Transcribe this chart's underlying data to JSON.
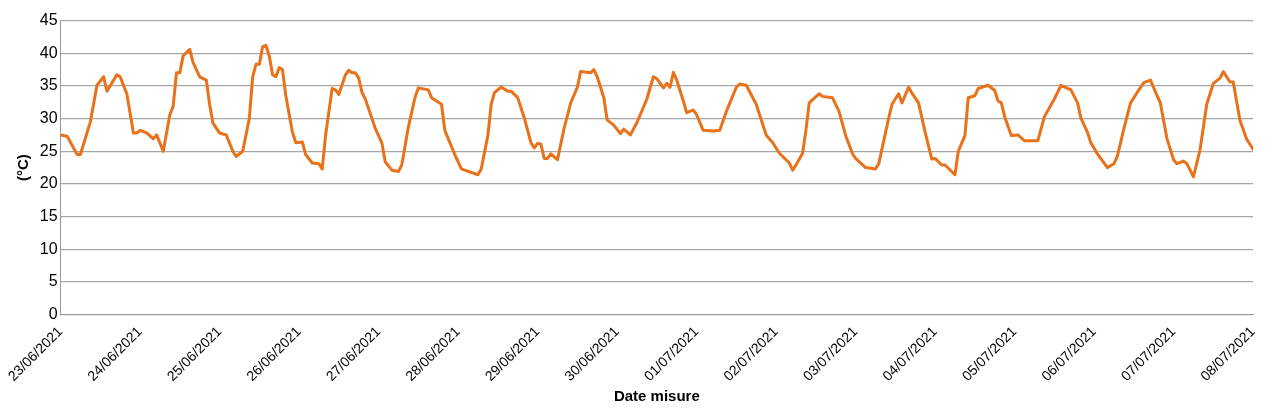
{
  "chart_data": {
    "type": "line",
    "xlabel": "Date misure",
    "ylabel": "(°C)",
    "xlim": [
      "2021-06-23",
      "2021-07-08"
    ],
    "ylim": [
      0,
      45
    ],
    "yticks": [
      0,
      5,
      10,
      15,
      20,
      25,
      30,
      35,
      40,
      45
    ],
    "xticks": [
      {
        "value": "2021-06-23",
        "label": "23/06/2021"
      },
      {
        "value": "2021-06-24",
        "label": "24/06/2021"
      },
      {
        "value": "2021-06-25",
        "label": "25/06/2021"
      },
      {
        "value": "2021-06-26",
        "label": "26/06/2021"
      },
      {
        "value": "2021-06-27",
        "label": "27/06/2021"
      },
      {
        "value": "2021-06-28",
        "label": "28/06/2021"
      },
      {
        "value": "2021-06-29",
        "label": "29/06/2021"
      },
      {
        "value": "2021-06-30",
        "label": "30/06/2021"
      },
      {
        "value": "2021-07-01",
        "label": "01/07/2021"
      },
      {
        "value": "2021-07-02",
        "label": "02/07/2021"
      },
      {
        "value": "2021-07-03",
        "label": "03/07/2021"
      },
      {
        "value": "2021-07-04",
        "label": "04/07/2021"
      },
      {
        "value": "2021-07-05",
        "label": "05/07/2021"
      },
      {
        "value": "2021-07-06",
        "label": "06/07/2021"
      },
      {
        "value": "2021-07-07",
        "label": "07/07/2021"
      },
      {
        "value": "2021-07-08",
        "label": "08/07/2021"
      }
    ],
    "grid": "y",
    "legend": false,
    "marker": "none",
    "line_style": "solid",
    "series": [
      {
        "color": "#e8711a",
        "x": [
          "2021-06-23T00:00",
          "2021-06-23T02:00",
          "2021-06-23T05:00",
          "2021-06-23T06:00",
          "2021-06-23T09:00",
          "2021-06-23T11:00",
          "2021-06-23T13:00",
          "2021-06-23T14:00",
          "2021-06-23T17:00",
          "2021-06-23T18:00",
          "2021-06-23T20:00",
          "2021-06-23T22:00",
          "2021-06-23T23:00",
          "2021-06-24T00:00",
          "2021-06-24T02:00",
          "2021-06-24T04:00",
          "2021-06-24T05:00",
          "2021-06-24T07:00",
          "2021-06-24T09:00",
          "2021-06-24T10:00",
          "2021-06-24T11:00",
          "2021-06-24T12:00",
          "2021-06-24T13:00",
          "2021-06-24T15:00",
          "2021-06-24T16:00",
          "2021-06-24T18:00",
          "2021-06-24T20:00",
          "2021-06-24T21:00",
          "2021-06-24T22:00",
          "2021-06-25T00:00",
          "2021-06-25T02:00",
          "2021-06-25T04:00",
          "2021-06-25T05:00",
          "2021-06-25T07:00",
          "2021-06-25T09:00",
          "2021-06-25T10:00",
          "2021-06-25T11:00",
          "2021-06-25T12:00",
          "2021-06-25T13:00",
          "2021-06-25T14:00",
          "2021-06-25T15:00",
          "2021-06-25T16:00",
          "2021-06-25T17:00",
          "2021-06-25T18:00",
          "2021-06-25T19:00",
          "2021-06-25T20:00",
          "2021-06-25T22:00",
          "2021-06-25T23:00",
          "2021-06-26T01:00",
          "2021-06-26T02:00",
          "2021-06-26T04:00",
          "2021-06-26T06:00",
          "2021-06-26T07:00",
          "2021-06-26T08:00",
          "2021-06-26T10:00",
          "2021-06-26T11:00",
          "2021-06-26T12:00",
          "2021-06-26T14:00",
          "2021-06-26T15:00",
          "2021-06-26T16:00",
          "2021-06-26T17:00",
          "2021-06-26T18:00",
          "2021-06-26T19:00",
          "2021-06-26T20:00",
          "2021-06-26T23:00",
          "2021-06-27T01:00",
          "2021-06-27T02:00",
          "2021-06-27T04:00",
          "2021-06-27T06:00",
          "2021-06-27T07:00",
          "2021-06-27T09:00",
          "2021-06-27T11:00",
          "2021-06-27T12:00",
          "2021-06-27T15:00",
          "2021-06-27T16:00",
          "2021-06-27T19:00",
          "2021-06-27T20:00",
          "2021-06-27T23:00",
          "2021-06-28T01:00",
          "2021-06-28T02:00",
          "2021-06-28T06:00",
          "2021-06-28T07:00",
          "2021-06-28T09:00",
          "2021-06-28T10:00",
          "2021-06-28T11:00",
          "2021-06-28T13:00",
          "2021-06-28T15:00",
          "2021-06-28T16:00",
          "2021-06-28T18:00",
          "2021-06-28T20:00",
          "2021-06-28T22:00",
          "2021-06-28T23:00",
          "2021-06-29T00:00",
          "2021-06-29T01:00",
          "2021-06-29T02:00",
          "2021-06-29T03:00",
          "2021-06-29T04:00",
          "2021-06-29T06:00",
          "2021-06-29T08:00",
          "2021-06-29T10:00",
          "2021-06-29T12:00",
          "2021-06-29T13:00",
          "2021-06-29T16:00",
          "2021-06-29T17:00",
          "2021-06-29T18:00",
          "2021-06-29T20:00",
          "2021-06-29T21:00",
          "2021-06-29T23:00",
          "2021-06-30T01:00",
          "2021-06-30T02:00",
          "2021-06-30T04:00",
          "2021-06-30T06:00",
          "2021-06-30T09:00",
          "2021-06-30T10:00",
          "2021-06-30T11:00",
          "2021-06-30T12:00",
          "2021-06-30T14:00",
          "2021-06-30T15:00",
          "2021-06-30T16:00",
          "2021-06-30T17:00",
          "2021-06-30T18:00",
          "2021-06-30T20:00",
          "2021-06-30T21:00",
          "2021-06-30T23:00",
          "2021-07-01T00:00",
          "2021-07-01T02:00",
          "2021-07-01T05:00",
          "2021-07-01T07:00",
          "2021-07-01T09:00",
          "2021-07-01T12:00",
          "2021-07-01T13:00",
          "2021-07-01T15:00",
          "2021-07-01T18:00",
          "2021-07-01T21:00",
          "2021-07-01T23:00",
          "2021-07-02T01:00",
          "2021-07-02T04:00",
          "2021-07-02T05:00",
          "2021-07-02T06:00",
          "2021-07-02T08:00",
          "2021-07-02T09:00",
          "2021-07-02T10:00",
          "2021-07-02T13:00",
          "2021-07-02T14:00",
          "2021-07-02T17:00",
          "2021-07-02T19:00",
          "2021-07-02T21:00",
          "2021-07-02T23:00",
          "2021-07-03T00:00",
          "2021-07-03T03:00",
          "2021-07-03T06:00",
          "2021-07-03T07:00",
          "2021-07-03T10:00",
          "2021-07-03T11:00",
          "2021-07-03T13:00",
          "2021-07-03T14:00",
          "2021-07-03T16:00",
          "2021-07-03T17:00",
          "2021-07-03T19:00",
          "2021-07-03T21:00",
          "2021-07-03T23:00",
          "2021-07-04T00:00",
          "2021-07-04T02:00",
          "2021-07-04T03:00",
          "2021-07-04T06:00",
          "2021-07-04T07:00",
          "2021-07-04T09:00",
          "2021-07-04T10:00",
          "2021-07-04T12:00",
          "2021-07-04T13:00",
          "2021-07-04T16:00",
          "2021-07-04T18:00",
          "2021-07-04T19:00",
          "2021-07-04T20:00",
          "2021-07-04T21:00",
          "2021-07-04T23:00",
          "2021-07-05T01:00",
          "2021-07-05T03:00",
          "2021-07-05T07:00",
          "2021-07-05T09:00",
          "2021-07-05T12:00",
          "2021-07-05T14:00",
          "2021-07-05T17:00",
          "2021-07-05T19:00",
          "2021-07-05T20:00",
          "2021-07-05T22:00",
          "2021-07-05T23:00",
          "2021-07-06T01:00",
          "2021-07-06T04:00",
          "2021-07-06T06:00",
          "2021-07-06T07:00",
          "2021-07-06T09:00",
          "2021-07-06T11:00",
          "2021-07-06T13:00",
          "2021-07-06T15:00",
          "2021-07-06T17:00",
          "2021-07-06T19:00",
          "2021-07-06T20:00",
          "2021-07-06T22:00",
          "2021-07-07T00:00",
          "2021-07-07T01:00",
          "2021-07-07T03:00",
          "2021-07-07T04:00",
          "2021-07-07T06:00",
          "2021-07-07T08:00",
          "2021-07-07T10:00",
          "2021-07-07T12:00",
          "2021-07-07T14:00",
          "2021-07-07T15:00",
          "2021-07-07T17:00",
          "2021-07-07T18:00",
          "2021-07-07T20:00",
          "2021-07-07T22:00",
          "2021-07-08T00:00"
        ],
        "values": [
          27.5,
          27.3,
          24.5,
          24.5,
          29.5,
          35.1,
          36.4,
          34.2,
          36.7,
          36.4,
          33.8,
          27.8,
          27.8,
          28.2,
          27.8,
          26.9,
          27.5,
          25.0,
          30.6,
          31.9,
          37.0,
          37.0,
          39.6,
          40.6,
          38.6,
          36.4,
          35.9,
          32.2,
          29.3,
          27.8,
          27.5,
          25.0,
          24.2,
          25.0,
          30.1,
          36.4,
          38.3,
          38.3,
          41.0,
          41.2,
          39.6,
          36.7,
          36.4,
          37.8,
          37.5,
          33.5,
          27.9,
          26.3,
          26.4,
          24.5,
          23.2,
          23.1,
          22.3,
          27.4,
          34.6,
          34.4,
          33.7,
          36.7,
          37.4,
          37.0,
          37.0,
          36.2,
          34.0,
          33.0,
          28.5,
          26.3,
          23.4,
          22.1,
          21.9,
          22.9,
          28.7,
          33.2,
          34.7,
          34.4,
          33.2,
          32.2,
          28.2,
          24.5,
          22.3,
          22.1,
          21.4,
          22.3,
          27.4,
          32.2,
          34.0,
          34.8,
          34.2,
          34.2,
          33.2,
          30.1,
          26.3,
          25.5,
          26.2,
          26.1,
          23.9,
          23.9,
          24.6,
          23.7,
          28.5,
          32.4,
          34.8,
          37.2,
          37.0,
          37.5,
          36.4,
          33.2,
          29.8,
          29.0,
          27.7,
          28.4,
          27.5,
          29.4,
          33.0,
          34.8,
          36.4,
          36.1,
          34.7,
          35.4,
          34.8,
          37.1,
          35.9,
          32.7,
          30.9,
          31.3,
          30.6,
          28.2,
          28.1,
          28.2,
          31.1,
          34.8,
          35.3,
          35.1,
          32.2,
          27.5,
          26.3,
          24.7,
          23.2,
          22.1,
          22.9,
          24.7,
          28.2,
          32.4,
          33.8,
          33.4,
          33.2,
          31.1,
          27.4,
          24.7,
          23.9,
          22.5,
          22.3,
          23.1,
          30.1,
          32.2,
          33.8,
          32.4,
          34.8,
          33.9,
          32.4,
          27.9,
          23.8,
          23.9,
          22.9,
          22.9,
          21.4,
          25.0,
          27.4,
          33.2,
          33.5,
          34.6,
          35.1,
          34.3,
          32.7,
          32.4,
          30.3,
          27.4,
          27.5,
          26.6,
          26.6,
          30.3,
          33.0,
          35.1,
          34.4,
          32.4,
          30.1,
          27.9,
          26.3,
          24.6,
          22.5,
          23.1,
          24.2,
          28.5,
          32.4,
          34.0,
          35.5,
          35.9,
          33.5,
          32.4,
          26.9,
          23.7,
          23.1,
          23.5,
          23.1,
          21.1,
          25.3,
          32.2,
          35.4,
          36.2,
          37.2,
          35.6,
          35.6,
          29.8,
          26.9,
          25.3
        ]
      }
    ]
  }
}
